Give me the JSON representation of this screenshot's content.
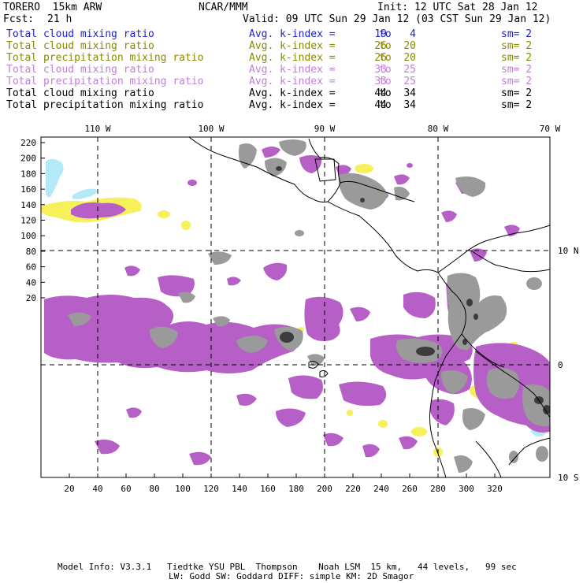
{
  "header": {
    "model": "TORERO  15km ARW",
    "center": "NCAR/MMM",
    "init": "Init: 12 UTC Sat 28 Jan 12",
    "fcst_label": "Fcst:",
    "fcst_value": "21 h",
    "valid": "Valid: 09 UTC Sun 29 Jan 12 (03 CST Sun 29 Jan 12)"
  },
  "legend": [
    {
      "field": "Total cloud mixing ratio",
      "kindex_label": "Avg. k-index =",
      "from": "19",
      "to_word": "to",
      "to": "4",
      "sm": "sm= 2",
      "color": "#1e22c8"
    },
    {
      "field": "Total cloud mixing ratio",
      "kindex_label": "Avg. k-index =",
      "from": "26",
      "to_word": "to",
      "to": "20",
      "sm": "sm= 2",
      "color": "#8a8a00"
    },
    {
      "field": "Total precipitation mixing ratio",
      "kindex_label": "Avg. k-index =",
      "from": "26",
      "to_word": "to",
      "to": "20",
      "sm": "sm= 2",
      "color": "#8a8a00"
    },
    {
      "field": "Total cloud mixing ratio",
      "kindex_label": "Avg. k-index =",
      "from": "33",
      "to_word": "to",
      "to": "25",
      "sm": "sm= 2",
      "color": "#c080d8"
    },
    {
      "field": "Total precipitation mixing ratio",
      "kindex_label": "Avg. k-index =",
      "from": "33",
      "to_word": "to",
      "to": "25",
      "sm": "sm= 2",
      "color": "#c080d8"
    },
    {
      "field": "Total cloud mixing ratio",
      "kindex_label": "Avg. k-index =",
      "from": "44",
      "to_word": "to",
      "to": "34",
      "sm": "sm= 2",
      "color": "#000000"
    },
    {
      "field": "Total precipitation mixing ratio",
      "kindex_label": "Avg. k-index =",
      "from": "44",
      "to_word": "to",
      "to": "34",
      "sm": "sm= 2",
      "color": "#000000"
    }
  ],
  "map": {
    "top_labels": [
      "110 W",
      "100 W",
      "90 W",
      "80 W",
      "70 W"
    ],
    "right_labels": [
      "10 N",
      "0",
      "10 S"
    ],
    "y_ticks": [
      "220",
      "200",
      "180",
      "160",
      "140",
      "120",
      "100",
      "80",
      "60",
      "40",
      "20"
    ],
    "x_ticks": [
      "20",
      "40",
      "60",
      "80",
      "100",
      "120",
      "140",
      "160",
      "180",
      "200",
      "220",
      "240",
      "260",
      "280",
      "300",
      "320"
    ],
    "colors": {
      "purple": "#b65fc6",
      "gray": "#9a9a9a",
      "dark": "#3c3c3c",
      "yellow": "#f6f05a",
      "lightblue": "#b4eaf8"
    }
  },
  "footer": {
    "line1": "Model Info: V3.3.1   Tiedtke YSU PBL  Thompson    Noah LSM  15 km,   44 levels,   99 sec",
    "line2": "LW: Godd SW: Goddard DIFF: simple KM: 2D Smagor"
  }
}
